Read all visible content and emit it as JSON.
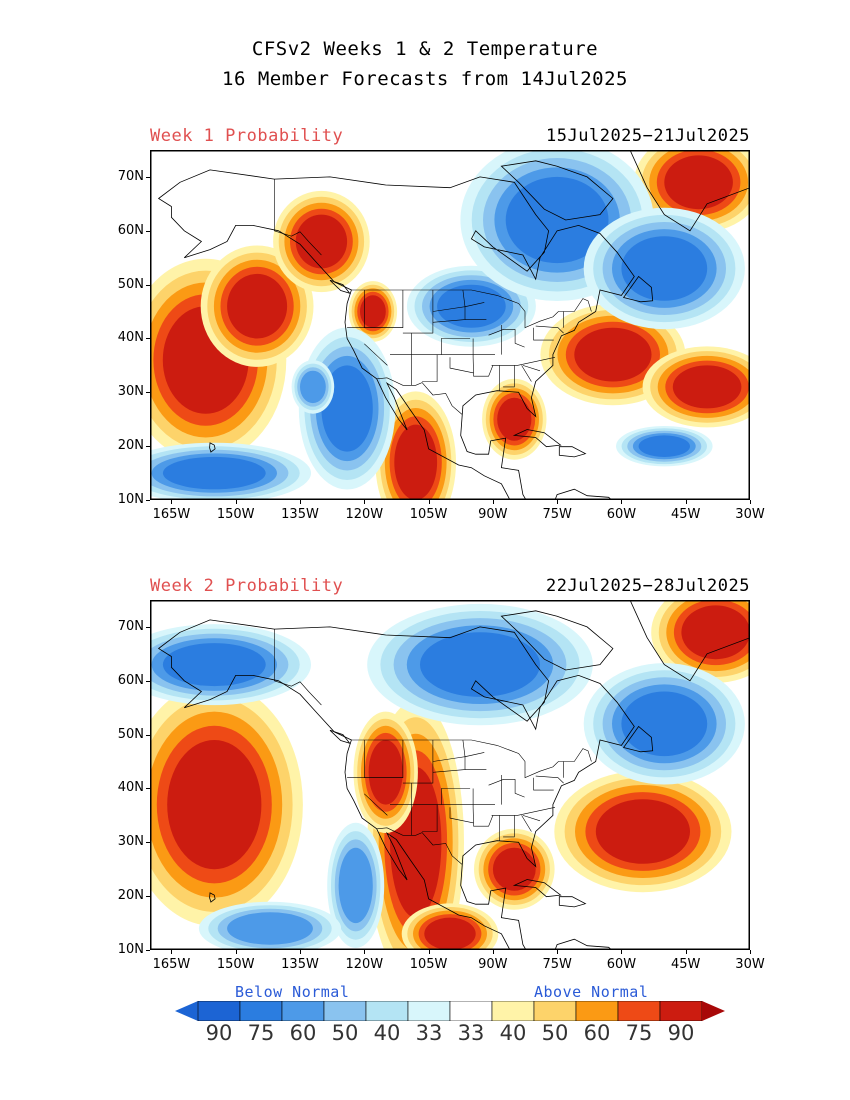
{
  "header": {
    "title_line1": "CFSv2 Weeks 1 & 2 Temperature",
    "title_line2": "16 Member Forecasts from 14Jul2025"
  },
  "axes": {
    "lat_labels": [
      "70N",
      "60N",
      "50N",
      "40N",
      "30N",
      "20N",
      "10N"
    ],
    "lon_labels": [
      "165W",
      "150W",
      "135W",
      "120W",
      "105W",
      "90W",
      "75W",
      "60W",
      "45W",
      "30W"
    ],
    "lat_range": [
      10,
      75
    ],
    "lon_range": [
      -170,
      -30
    ]
  },
  "panels": [
    {
      "label": "Week 1 Probability",
      "dates": "15Jul2025−21Jul2025",
      "anomalies": [
        {
          "category": "above",
          "level": 90,
          "lon": -157,
          "lat": 36,
          "rx_deg": 10,
          "ry_deg": 10
        },
        {
          "category": "above",
          "level": 90,
          "lon": -145,
          "lat": 46,
          "rx_deg": 7,
          "ry_deg": 6
        },
        {
          "category": "above",
          "level": 90,
          "lon": -130,
          "lat": 58,
          "rx_deg": 6,
          "ry_deg": 5
        },
        {
          "category": "above",
          "level": 90,
          "lon": -108,
          "lat": 17,
          "rx_deg": 5,
          "ry_deg": 7
        },
        {
          "category": "above",
          "level": 90,
          "lon": -85,
          "lat": 25,
          "rx_deg": 4,
          "ry_deg": 4
        },
        {
          "category": "above",
          "level": 90,
          "lon": -62,
          "lat": 37,
          "rx_deg": 9,
          "ry_deg": 5
        },
        {
          "category": "above",
          "level": 90,
          "lon": -40,
          "lat": 31,
          "rx_deg": 8,
          "ry_deg": 4
        },
        {
          "category": "above",
          "level": 90,
          "lon": -42,
          "lat": 69,
          "rx_deg": 8,
          "ry_deg": 5
        },
        {
          "category": "above",
          "level": 90,
          "lon": -118,
          "lat": 45,
          "rx_deg": 3,
          "ry_deg": 3
        },
        {
          "category": "below",
          "level": 75,
          "lon": -95,
          "lat": 46,
          "rx_deg": 8,
          "ry_deg": 4
        },
        {
          "category": "below",
          "level": 75,
          "lon": -75,
          "lat": 62,
          "rx_deg": 12,
          "ry_deg": 8
        },
        {
          "category": "below",
          "level": 75,
          "lon": -50,
          "lat": 53,
          "rx_deg": 10,
          "ry_deg": 6
        },
        {
          "category": "below",
          "level": 75,
          "lon": -124,
          "lat": 27,
          "rx_deg": 6,
          "ry_deg": 8
        },
        {
          "category": "below",
          "level": 75,
          "lon": -155,
          "lat": 15,
          "rx_deg": 12,
          "ry_deg": 3
        },
        {
          "category": "below",
          "level": 75,
          "lon": -50,
          "lat": 20,
          "rx_deg": 6,
          "ry_deg": 2
        },
        {
          "category": "below",
          "level": 60,
          "lon": -132,
          "lat": 31,
          "rx_deg": 3,
          "ry_deg": 3
        }
      ]
    },
    {
      "label": "Week 2 Probability",
      "dates": "22Jul2025−28Jul2025",
      "anomalies": [
        {
          "category": "above",
          "level": 90,
          "lon": -155,
          "lat": 37,
          "rx_deg": 11,
          "ry_deg": 12
        },
        {
          "category": "above",
          "level": 90,
          "lon": -108,
          "lat": 30,
          "rx_deg": 6,
          "ry_deg": 14
        },
        {
          "category": "above",
          "level": 90,
          "lon": -115,
          "lat": 43,
          "rx_deg": 4,
          "ry_deg": 6
        },
        {
          "category": "above",
          "level": 90,
          "lon": -85,
          "lat": 25,
          "rx_deg": 5,
          "ry_deg": 4
        },
        {
          "category": "above",
          "level": 90,
          "lon": -55,
          "lat": 32,
          "rx_deg": 11,
          "ry_deg": 6
        },
        {
          "category": "above",
          "level": 90,
          "lon": -38,
          "lat": 69,
          "rx_deg": 8,
          "ry_deg": 5
        },
        {
          "category": "above",
          "level": 90,
          "lon": -100,
          "lat": 13,
          "rx_deg": 6,
          "ry_deg": 3
        },
        {
          "category": "below",
          "level": 75,
          "lon": -93,
          "lat": 63,
          "rx_deg": 14,
          "ry_deg": 6
        },
        {
          "category": "below",
          "level": 75,
          "lon": -155,
          "lat": 63,
          "rx_deg": 12,
          "ry_deg": 4
        },
        {
          "category": "below",
          "level": 75,
          "lon": -50,
          "lat": 52,
          "rx_deg": 10,
          "ry_deg": 6
        },
        {
          "category": "below",
          "level": 60,
          "lon": -122,
          "lat": 22,
          "rx_deg": 4,
          "ry_deg": 7
        },
        {
          "category": "below",
          "level": 60,
          "lon": -142,
          "lat": 14,
          "rx_deg": 10,
          "ry_deg": 3
        }
      ]
    }
  ],
  "legend": {
    "below_label": "Below Normal",
    "above_label": "Above Normal",
    "bins": [
      {
        "label": "90",
        "color": "#1c64d4"
      },
      {
        "label": "75",
        "color": "#2b7de0"
      },
      {
        "label": "60",
        "color": "#4d9ae8"
      },
      {
        "label": "50",
        "color": "#8ac3ef"
      },
      {
        "label": "40",
        "color": "#b4e4f4"
      },
      {
        "label": "33",
        "color": "#d8f6fb"
      },
      {
        "label": "33",
        "color": "#ffffff"
      },
      {
        "label": "40",
        "color": "#fff3a8"
      },
      {
        "label": "50",
        "color": "#fdd36a"
      },
      {
        "label": "60",
        "color": "#fb9a14"
      },
      {
        "label": "75",
        "color": "#ee4a16"
      },
      {
        "label": "90",
        "color": "#cc1c10"
      }
    ],
    "arrow_below_color": "#1c64d4",
    "arrow_above_color": "#a80808"
  }
}
